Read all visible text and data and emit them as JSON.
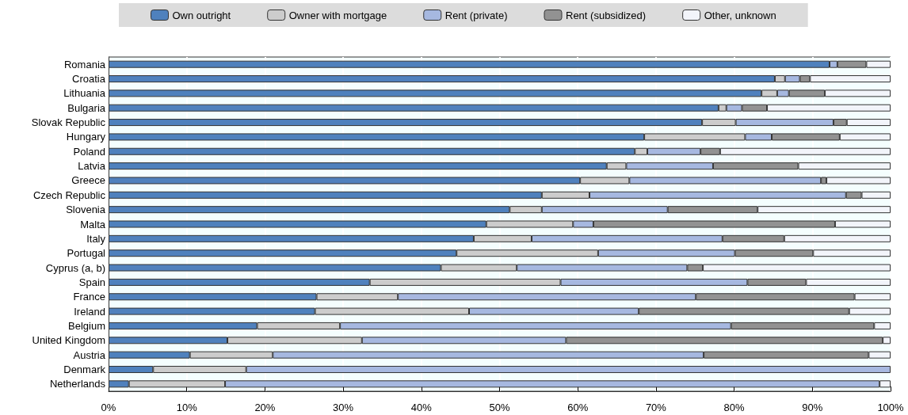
{
  "chart_data": {
    "type": "bar",
    "orientation": "horizontal",
    "stacked": true,
    "legend": "top",
    "grid": "x",
    "categories": [
      "Romania",
      "Croatia",
      "Lithuania",
      "Bulgaria",
      "Slovak Republic",
      "Hungary",
      "Poland",
      "Latvia",
      "Greece",
      "Czech Republic",
      "Slovenia",
      "Malta",
      "Italy",
      "Portugal",
      "Cyprus (a, b)",
      "Spain",
      "France",
      "Ireland",
      "Belgium",
      "United Kingdom",
      "Austria",
      "Denmark",
      "Netherlands"
    ],
    "xlim": [
      0,
      100
    ],
    "xticks": [
      {
        "value": 0,
        "label": "0%"
      },
      {
        "value": 10,
        "label": "10%"
      },
      {
        "value": 20,
        "label": "20%"
      },
      {
        "value": 30,
        "label": "30%"
      },
      {
        "value": 40,
        "label": "40%"
      },
      {
        "value": 50,
        "label": "50%"
      },
      {
        "value": 60,
        "label": "60%"
      },
      {
        "value": 70,
        "label": "70%"
      },
      {
        "value": 80,
        "label": "80%"
      },
      {
        "value": 90,
        "label": "90%"
      },
      {
        "value": 100,
        "label": "100%"
      }
    ],
    "series": [
      {
        "name": "Own outright",
        "color": "#4f81bd",
        "values": [
          92.2,
          85.2,
          83.5,
          78.0,
          75.9,
          68.5,
          67.3,
          63.7,
          60.3,
          55.4,
          51.3,
          48.3,
          46.7,
          44.5,
          42.5,
          33.4,
          26.6,
          26.4,
          19.0,
          15.2,
          10.4,
          5.7,
          2.6
        ]
      },
      {
        "name": "Owner with mortgage",
        "color": "#cccccc",
        "values": [
          0,
          1.3,
          2.0,
          1.0,
          4.3,
          12.9,
          1.6,
          2.5,
          6.3,
          6.1,
          4.1,
          11.1,
          7.4,
          18.1,
          9.7,
          24.4,
          10.4,
          19.7,
          10.6,
          17.2,
          10.6,
          11.9,
          12.3
        ]
      },
      {
        "name": "Rent (private)",
        "color": "#a6b8e0",
        "values": [
          1.0,
          1.9,
          1.5,
          2.0,
          12.5,
          3.4,
          6.8,
          11.1,
          24.5,
          32.8,
          16.1,
          2.6,
          24.4,
          17.5,
          21.8,
          23.9,
          38.1,
          21.7,
          50.0,
          26.1,
          55.1,
          82.4,
          83.7
        ]
      },
      {
        "name": "Rent (subsidized)",
        "color": "#929292",
        "values": [
          3.7,
          1.3,
          4.6,
          3.2,
          1.7,
          8.7,
          2.5,
          10.9,
          0.7,
          2.0,
          11.5,
          30.9,
          7.9,
          10.0,
          2.0,
          7.5,
          20.3,
          26.9,
          18.3,
          40.5,
          21.1,
          0,
          0
        ]
      },
      {
        "name": "Other, unknown",
        "color": "#f2f4fa",
        "values": [
          3.1,
          10.3,
          8.4,
          15.8,
          5.6,
          6.5,
          21.8,
          11.8,
          8.2,
          3.7,
          17.0,
          7.1,
          13.6,
          9.9,
          24.0,
          10.8,
          4.6,
          5.3,
          2.1,
          1.0,
          2.8,
          0,
          1.4
        ]
      }
    ]
  }
}
